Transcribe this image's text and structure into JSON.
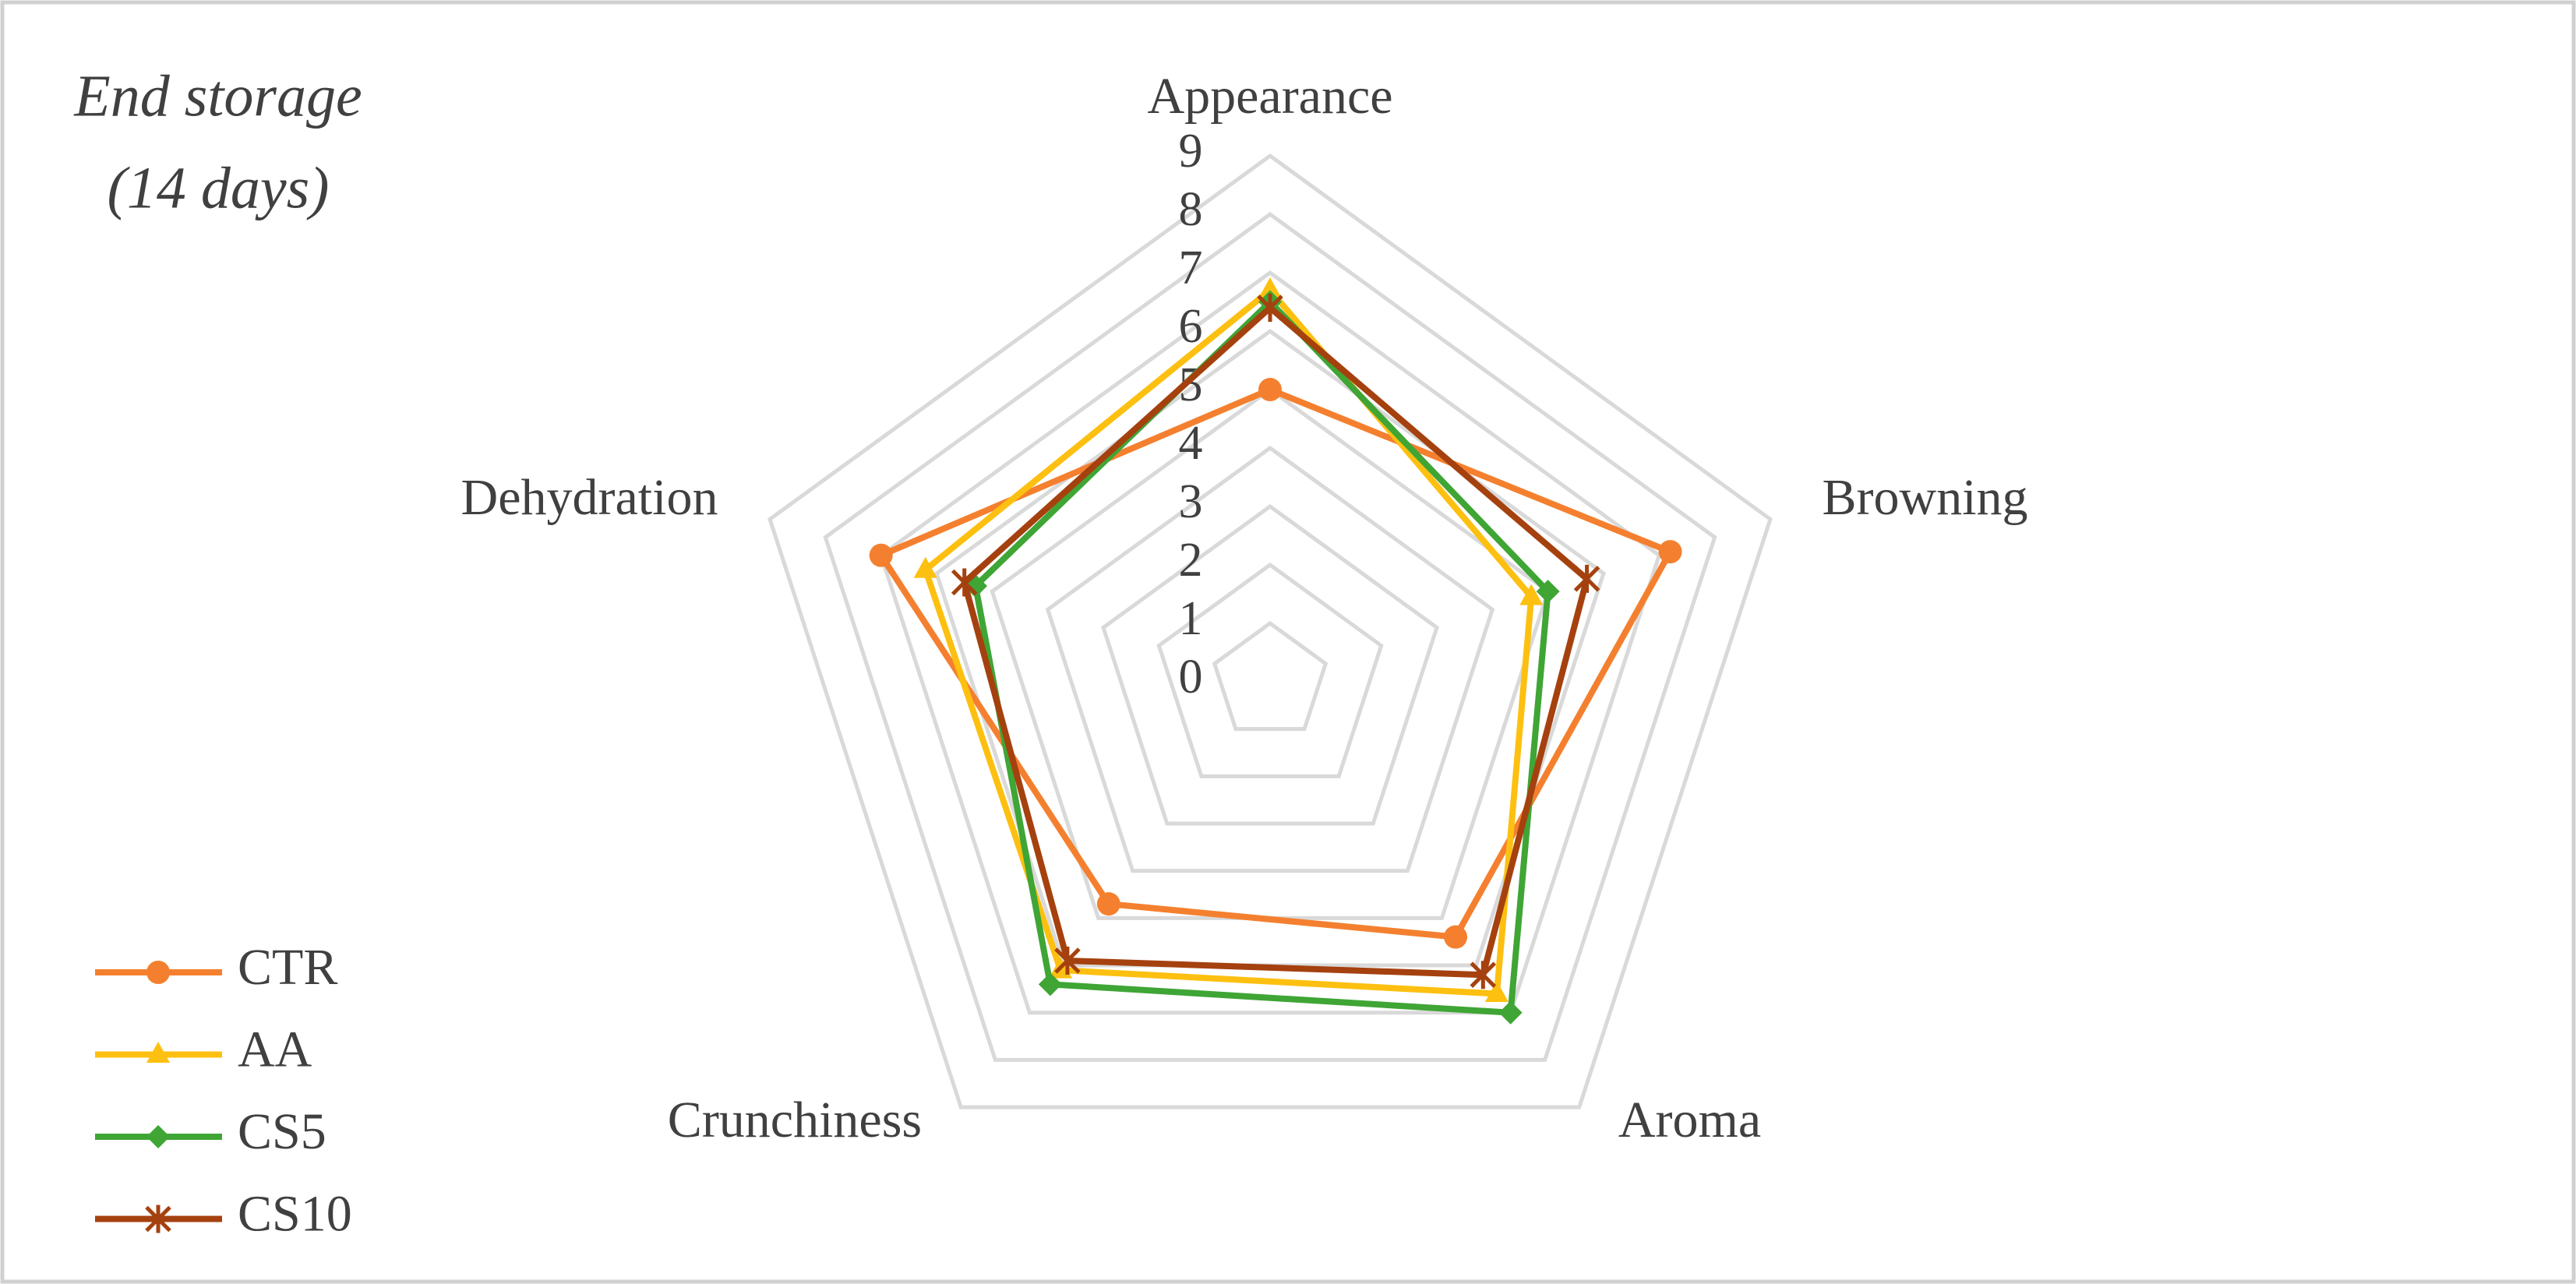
{
  "chart_data": {
    "type": "radar",
    "title": [
      "End storage",
      "(14 days)"
    ],
    "categories": [
      "Appearance",
      "Browning",
      "Aroma",
      "Crunchiness",
      "Dehydration"
    ],
    "rlim": [
      0,
      9
    ],
    "rticks": [
      0,
      1,
      2,
      3,
      4,
      5,
      6,
      7,
      8,
      9
    ],
    "grid": true,
    "legend": "bottom-left",
    "series": [
      {
        "name": "CTR",
        "color": "#f4802f",
        "marker": "circle",
        "values": [
          5.0,
          7.2,
          5.4,
          4.7,
          7.0
        ]
      },
      {
        "name": "AA",
        "color": "#fdc010",
        "marker": "triangle",
        "values": [
          6.7,
          4.7,
          6.6,
          6.1,
          6.2
        ]
      },
      {
        "name": "CS5",
        "color": "#3fa535",
        "marker": "diamond",
        "values": [
          6.5,
          5.0,
          7.0,
          6.4,
          5.3
        ]
      },
      {
        "name": "CS10",
        "color": "#a5410e",
        "marker": "star",
        "values": [
          6.4,
          5.7,
          6.2,
          5.9,
          5.5
        ]
      }
    ]
  }
}
